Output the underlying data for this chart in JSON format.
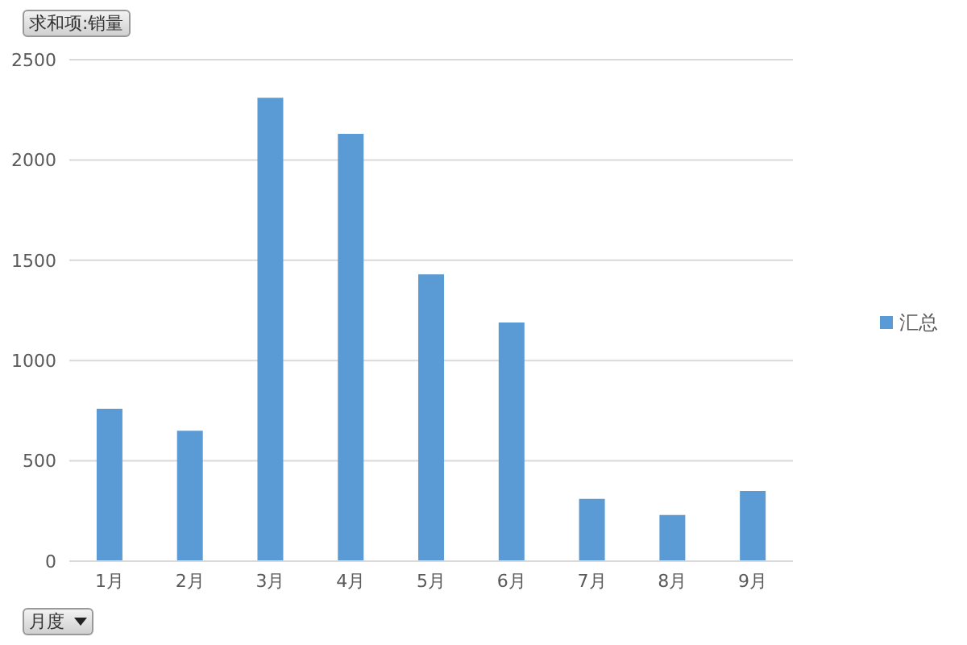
{
  "chart_data": {
    "type": "bar",
    "title": "求和项:销量",
    "xlabel": "月度",
    "categories": [
      "1月",
      "2月",
      "3月",
      "4月",
      "5月",
      "6月",
      "7月",
      "8月",
      "9月"
    ],
    "series": [
      {
        "name": "汇总",
        "color": "#5b9bd5",
        "values": [
          760,
          650,
          2310,
          2130,
          1430,
          1190,
          310,
          230,
          350
        ]
      }
    ],
    "ylim": [
      0,
      2500
    ],
    "yticks": [
      0,
      500,
      1000,
      1500,
      2000,
      2500
    ],
    "grid": "y",
    "legend": "right"
  }
}
